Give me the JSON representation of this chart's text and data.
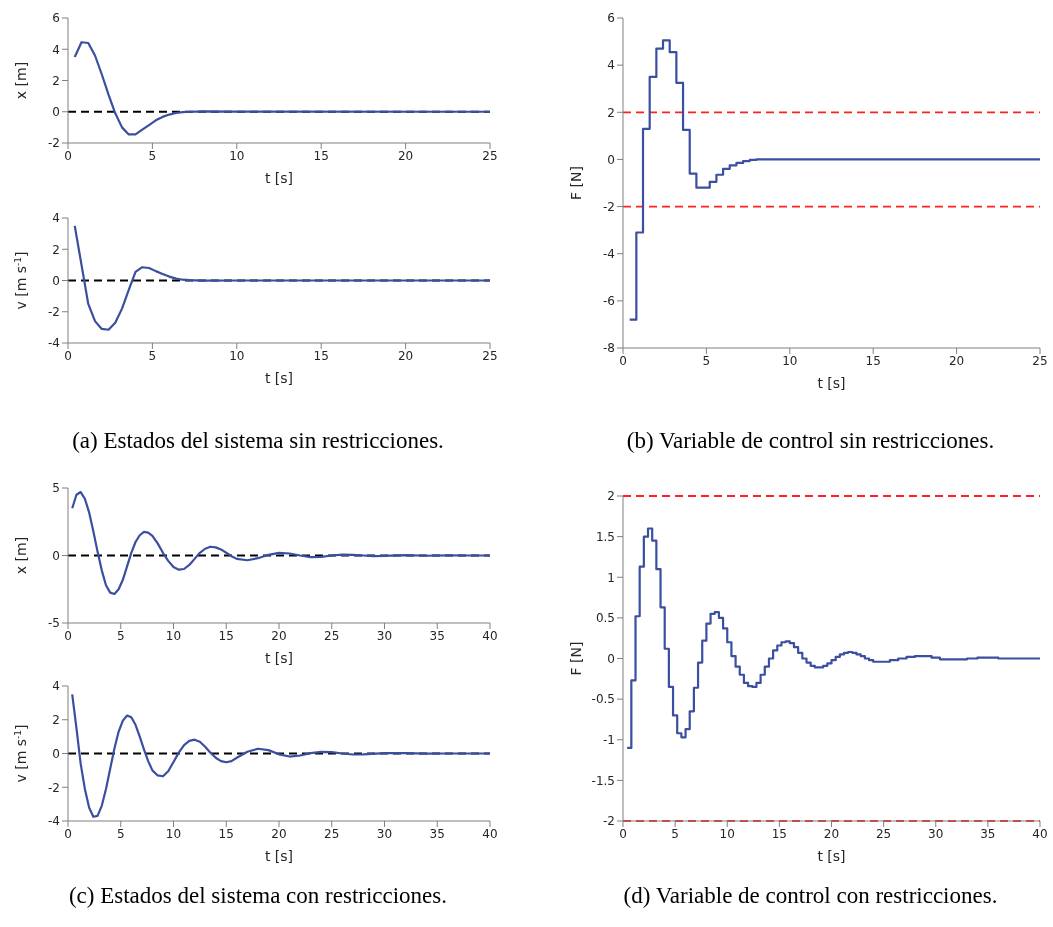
{
  "chart_data": [
    {
      "type": "line",
      "ylabel": "x [m]",
      "xlabel": "t [s]",
      "xlim": [
        0,
        25
      ],
      "xticks": [
        0,
        5,
        10,
        15,
        20,
        25
      ],
      "ylim": [
        -2,
        6
      ],
      "yticks": [
        -2,
        0,
        2,
        4,
        6
      ],
      "color": "#3a4fa0",
      "x": [
        0.4,
        0.8,
        1.2,
        1.6,
        2.0,
        2.4,
        2.8,
        3.2,
        3.6,
        4.0,
        4.4,
        4.8,
        5.2,
        5.6,
        6.0,
        6.4,
        6.8,
        7.2,
        8,
        10,
        25
      ],
      "values": [
        3.5,
        4.45,
        4.4,
        3.6,
        2.4,
        1.1,
        -0.1,
        -1.0,
        -1.45,
        -1.45,
        -1.15,
        -0.85,
        -0.55,
        -0.33,
        -0.18,
        -0.08,
        -0.02,
        0,
        0.02,
        0.01,
        0
      ],
      "ref_lines": [
        {
          "axis": "y",
          "value": 0,
          "color": "#000000",
          "line_style": "dashed"
        }
      ]
    },
    {
      "type": "line",
      "ylabel": "v [m s$^{-1}$]",
      "xlabel": "t [s]",
      "xlim": [
        0,
        25
      ],
      "xticks": [
        0,
        5,
        10,
        15,
        20,
        25
      ],
      "ylim": [
        -4,
        4
      ],
      "yticks": [
        -4,
        -2,
        0,
        2,
        4
      ],
      "color": "#3a4fa0",
      "x": [
        0.4,
        0.8,
        1.2,
        1.6,
        2.0,
        2.4,
        2.8,
        3.2,
        3.6,
        4.0,
        4.4,
        4.8,
        5.2,
        5.6,
        6.0,
        6.4,
        6.8,
        7.2,
        8,
        10,
        25
      ],
      "values": [
        3.5,
        1.0,
        -1.5,
        -2.6,
        -3.1,
        -3.15,
        -2.7,
        -1.8,
        -0.6,
        0.55,
        0.85,
        0.8,
        0.6,
        0.42,
        0.25,
        0.12,
        0.05,
        0.02,
        -0.01,
        0,
        0
      ],
      "ref_lines": [
        {
          "axis": "y",
          "value": 0,
          "color": "#000000",
          "line_style": "dashed"
        }
      ],
      "annotations": [
        "(a) Estados del sistema sin restricciones."
      ]
    },
    {
      "type": "step",
      "ylabel": "F [N]",
      "xlabel": "t [s]",
      "xlim": [
        0,
        25
      ],
      "xticks": [
        0,
        5,
        10,
        15,
        20,
        25
      ],
      "ylim": [
        -8,
        6
      ],
      "yticks": [
        -8,
        -6,
        -4,
        -2,
        0,
        2,
        4,
        6
      ],
      "color": "#3a4fa0",
      "x": [
        0.4,
        0.8,
        1.2,
        1.6,
        2.0,
        2.4,
        2.8,
        3.2,
        3.6,
        4.0,
        4.4,
        4.8,
        5.2,
        5.6,
        6.0,
        6.4,
        6.8,
        7.2,
        7.6,
        8.0,
        10,
        25
      ],
      "values": [
        -6.8,
        -3.1,
        1.3,
        3.5,
        4.7,
        5.05,
        4.55,
        3.25,
        1.25,
        -0.6,
        -1.2,
        -1.2,
        -0.95,
        -0.65,
        -0.4,
        -0.25,
        -0.15,
        -0.07,
        -0.02,
        0,
        0,
        0
      ],
      "ref_lines": [
        {
          "axis": "y",
          "value": 2,
          "color": "#ff2020",
          "line_style": "dashed"
        },
        {
          "axis": "y",
          "value": -2,
          "color": "#ff2020",
          "line_style": "dashed"
        }
      ],
      "annotations": [
        "(b) Variable de control sin restricciones."
      ]
    },
    {
      "type": "line",
      "ylabel": "x [m]",
      "xlabel": "t [s]",
      "xlim": [
        0,
        40
      ],
      "xticks": [
        0,
        5,
        10,
        15,
        20,
        25,
        30,
        35,
        40
      ],
      "ylim": [
        -5,
        5
      ],
      "yticks": [
        -5,
        0,
        5
      ],
      "color": "#3a4fa0",
      "x": [
        0.4,
        0.8,
        1.2,
        1.6,
        2.0,
        2.4,
        2.8,
        3.2,
        3.6,
        4.0,
        4.4,
        4.8,
        5.2,
        5.6,
        6.0,
        6.4,
        6.8,
        7.2,
        7.6,
        8.0,
        8.5,
        9.0,
        9.5,
        10,
        10.5,
        11,
        11.5,
        12,
        12.5,
        13,
        13.5,
        14,
        14.5,
        15,
        15.5,
        16,
        17,
        18,
        19,
        20,
        21,
        22,
        23,
        24,
        25,
        26,
        27,
        28,
        29,
        30,
        32,
        34,
        36,
        38,
        40
      ],
      "values": [
        3.5,
        4.5,
        4.7,
        4.2,
        3.2,
        1.8,
        0.3,
        -1.1,
        -2.2,
        -2.75,
        -2.85,
        -2.5,
        -1.8,
        -0.8,
        0.2,
        1.0,
        1.5,
        1.75,
        1.7,
        1.45,
        0.9,
        0.2,
        -0.4,
        -0.85,
        -1.05,
        -1.0,
        -0.7,
        -0.25,
        0.2,
        0.5,
        0.65,
        0.6,
        0.45,
        0.2,
        -0.05,
        -0.25,
        -0.35,
        -0.2,
        0.05,
        0.2,
        0.15,
        0,
        -0.12,
        -0.1,
        0,
        0.06,
        0.05,
        0,
        -0.04,
        -0.03,
        0.03,
        -0.02,
        0.01,
        0,
        0
      ],
      "ref_lines": [
        {
          "axis": "y",
          "value": 0,
          "color": "#000000",
          "line_style": "dashed"
        }
      ]
    },
    {
      "type": "line",
      "ylabel": "v [m s$^{-1}$]",
      "xlabel": "t [s]",
      "xlim": [
        0,
        40
      ],
      "xticks": [
        0,
        5,
        10,
        15,
        20,
        25,
        30,
        35,
        40
      ],
      "ylim": [
        -4,
        4
      ],
      "yticks": [
        -4,
        -2,
        0,
        2,
        4
      ],
      "color": "#3a4fa0",
      "x": [
        0.4,
        0.8,
        1.2,
        1.6,
        2.0,
        2.4,
        2.8,
        3.2,
        3.6,
        4.0,
        4.4,
        4.8,
        5.2,
        5.6,
        6.0,
        6.4,
        6.8,
        7.2,
        7.6,
        8.0,
        8.5,
        9.0,
        9.5,
        10,
        10.5,
        11,
        11.5,
        12,
        12.5,
        13,
        13.5,
        14,
        14.5,
        15,
        15.5,
        16,
        17,
        18,
        19,
        20,
        21,
        22,
        23,
        24,
        25,
        26,
        27,
        28,
        30,
        32,
        34,
        36,
        40
      ],
      "values": [
        3.5,
        1.5,
        -0.6,
        -2.1,
        -3.2,
        -3.75,
        -3.7,
        -3.1,
        -2.1,
        -0.9,
        0.3,
        1.3,
        1.95,
        2.25,
        2.15,
        1.7,
        1.0,
        0.25,
        -0.45,
        -1.0,
        -1.3,
        -1.35,
        -1.05,
        -0.5,
        0.05,
        0.5,
        0.75,
        0.82,
        0.7,
        0.4,
        0.05,
        -0.25,
        -0.45,
        -0.52,
        -0.45,
        -0.25,
        0.1,
        0.28,
        0.2,
        -0.05,
        -0.18,
        -0.12,
        0.02,
        0.1,
        0.08,
        0,
        -0.06,
        -0.05,
        0.02,
        0.02,
        -0.01,
        0,
        0
      ],
      "ref_lines": [
        {
          "axis": "y",
          "value": 0,
          "color": "#000000",
          "line_style": "dashed"
        }
      ],
      "annotations": [
        "(c) Estados del sistema con restricciones."
      ]
    },
    {
      "type": "step",
      "ylabel": "F [N]",
      "xlabel": "t [s]",
      "xlim": [
        0,
        40
      ],
      "xticks": [
        0,
        5,
        10,
        15,
        20,
        25,
        30,
        35,
        40
      ],
      "ylim": [
        -2,
        2
      ],
      "yticks": [
        -2,
        -1.5,
        -1,
        -0.5,
        0,
        0.5,
        1,
        1.5,
        2
      ],
      "color": "#3a4fa0",
      "x": [
        0.4,
        0.8,
        1.2,
        1.6,
        2.0,
        2.4,
        2.8,
        3.2,
        3.6,
        4.0,
        4.4,
        4.8,
        5.2,
        5.6,
        6.0,
        6.4,
        6.8,
        7.2,
        7.6,
        8.0,
        8.4,
        8.8,
        9.2,
        9.6,
        10.0,
        10.4,
        10.8,
        11.2,
        11.6,
        12.0,
        12.4,
        12.8,
        13.2,
        13.6,
        14.0,
        14.4,
        14.8,
        15.2,
        15.6,
        16.0,
        16.4,
        16.8,
        17.2,
        17.6,
        18.0,
        18.4,
        18.8,
        19.2,
        19.6,
        20.0,
        20.4,
        20.8,
        21.2,
        21.6,
        22.0,
        22.4,
        22.8,
        23.2,
        23.6,
        24.0,
        24.8,
        25.6,
        26.4,
        27.2,
        28.0,
        28.8,
        29.6,
        30.4,
        31.2,
        32.0,
        33.0,
        34.0,
        35.0,
        36.0,
        38.0,
        40.0
      ],
      "values": [
        -1.1,
        -0.27,
        0.52,
        1.13,
        1.5,
        1.6,
        1.45,
        1.1,
        0.63,
        0.12,
        -0.35,
        -0.7,
        -0.92,
        -0.97,
        -0.87,
        -0.65,
        -0.36,
        -0.05,
        0.22,
        0.43,
        0.55,
        0.57,
        0.5,
        0.37,
        0.2,
        0.03,
        -0.1,
        -0.2,
        -0.3,
        -0.34,
        -0.35,
        -0.3,
        -0.2,
        -0.1,
        0.0,
        0.1,
        0.16,
        0.2,
        0.21,
        0.19,
        0.14,
        0.07,
        0.0,
        -0.05,
        -0.09,
        -0.11,
        -0.11,
        -0.09,
        -0.06,
        -0.02,
        0.02,
        0.05,
        0.07,
        0.08,
        0.07,
        0.05,
        0.03,
        0.0,
        -0.02,
        -0.04,
        -0.04,
        -0.02,
        0.0,
        0.02,
        0.03,
        0.03,
        0.01,
        -0.01,
        -0.01,
        -0.01,
        0.0,
        0.01,
        0.01,
        0.0,
        0.0,
        0.0
      ],
      "ref_lines": [
        {
          "axis": "y",
          "value": 2,
          "color": "#ff2020",
          "line_style": "dashed"
        },
        {
          "axis": "y",
          "value": -2,
          "color": "#ff2020",
          "line_style": "dashed"
        }
      ],
      "annotations": [
        "(d) Variable de control con restricciones."
      ]
    }
  ]
}
